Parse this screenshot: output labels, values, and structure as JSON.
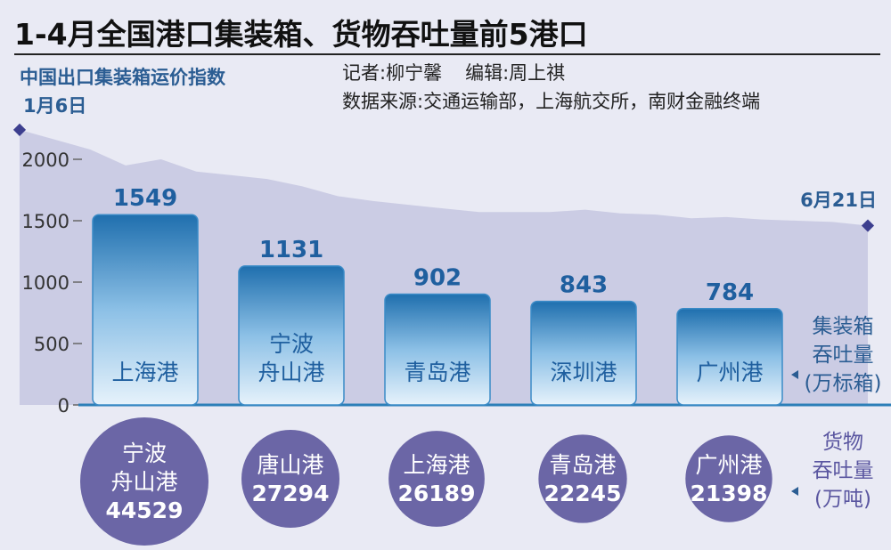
{
  "header": {
    "title": "1-4月全国港口集装箱、货物吞吐量前5港口",
    "reporter": "记者:柳宁馨",
    "editor": "编辑:周上祺",
    "source": "数据来源:交通运输部，上海航交所，南财金融终端"
  },
  "chart_data": [
    {
      "type": "area",
      "title": "中国出口集装箱运价指数",
      "x_labels": [
        "1月6日",
        "6月21日"
      ],
      "values": [
        2240,
        2160,
        2080,
        1950,
        2000,
        1900,
        1870,
        1840,
        1780,
        1700,
        1660,
        1630,
        1600,
        1570,
        1570,
        1570,
        1590,
        1560,
        1550,
        1520,
        1530,
        1510,
        1500,
        1490,
        1460
      ],
      "ylim": [
        0,
        2300
      ]
    },
    {
      "type": "bar",
      "title": "集装箱吞吐量(万标箱)",
      "series_label": [
        "集装箱",
        "吞吐量",
        "(万标箱)"
      ],
      "categories": [
        {
          "name": "上海港",
          "lines": [
            "上海港"
          ]
        },
        {
          "name": "宁波舟山港",
          "lines": [
            "宁波",
            "舟山港"
          ]
        },
        {
          "name": "青岛港",
          "lines": [
            "青岛港"
          ]
        },
        {
          "name": "深圳港",
          "lines": [
            "深圳港"
          ]
        },
        {
          "name": "广州港",
          "lines": [
            "广州港"
          ]
        }
      ],
      "values": [
        1549,
        1131,
        902,
        843,
        784
      ],
      "value_labels": [
        "1549",
        "1131",
        "902",
        "843",
        "784"
      ],
      "ylim": [
        0,
        2300
      ],
      "yticks": [
        0,
        500,
        1000,
        1500,
        2000
      ],
      "ytick_labels": [
        "0",
        "500",
        "1000",
        "1500",
        "2000"
      ]
    },
    {
      "type": "bubble",
      "title": "货物吞吐量(万吨)",
      "series_label": [
        "货物",
        "吞吐量",
        "(万吨)"
      ],
      "items": [
        {
          "lines": [
            "宁波",
            "舟山港"
          ],
          "value": 44529,
          "value_label": "44529"
        },
        {
          "lines": [
            "唐山港"
          ],
          "value": 27294,
          "value_label": "27294"
        },
        {
          "lines": [
            "上海港"
          ],
          "value": 26189,
          "value_label": "26189"
        },
        {
          "lines": [
            "青岛港"
          ],
          "value": 22245,
          "value_label": "22245"
        },
        {
          "lines": [
            "广州港"
          ],
          "value": 21398,
          "value_label": "21398"
        }
      ]
    }
  ],
  "colors": {
    "area_fill": "#c5c7e1",
    "axis": "#2c7fb8",
    "bar_dark": "#1f6fae",
    "bar_light": "#dfeef9",
    "bar_stroke": "#3b8bc7",
    "label_blue": "#1f5f9f",
    "bubble": "#6b66a6",
    "side_label": "#2b5d93"
  }
}
